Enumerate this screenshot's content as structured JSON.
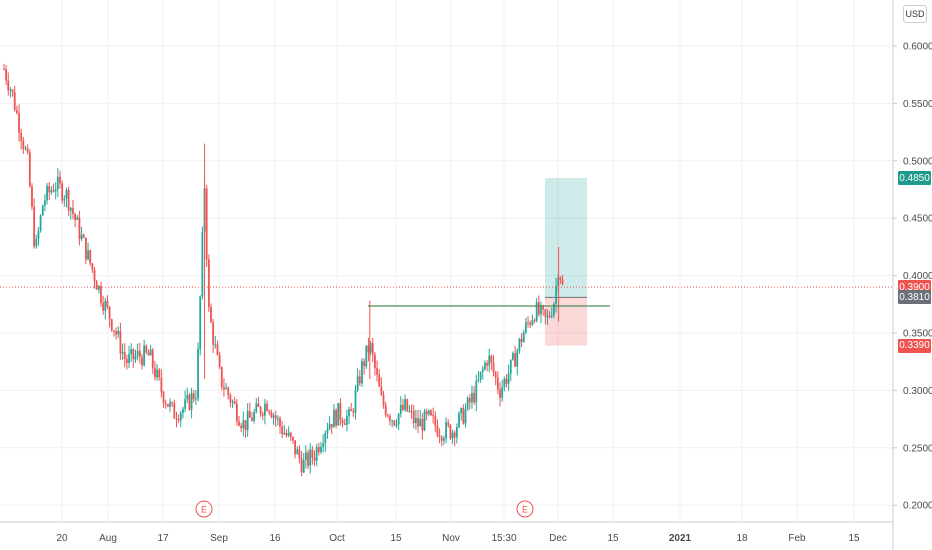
{
  "currency": "USD",
  "price_tags": [
    {
      "label": "0.4850",
      "value": 0.485,
      "color": "#1e9a8a"
    },
    {
      "label": "0.3900",
      "value": 0.39,
      "color": "#ef5350"
    },
    {
      "label": "0.3810",
      "value": 0.381,
      "color": "#6b6f78"
    },
    {
      "label": "0.3390",
      "value": 0.339,
      "color": "#ef5350"
    }
  ],
  "event_markers": [
    {
      "label": "E",
      "date": "2020-08-31"
    },
    {
      "label": "E",
      "date": "2020-11-26"
    }
  ],
  "colors": {
    "up": "#26a69a",
    "down": "#ef5350",
    "grid": "#eef0f3",
    "level_line": "#4f8a5b"
  },
  "chart_data": {
    "type": "candlestick",
    "x_ticks": [
      "20",
      "Aug",
      "17",
      "Sep",
      "16",
      "Oct",
      "15",
      "Nov",
      "15:30",
      "Dec",
      "15",
      "2021",
      "18",
      "Feb",
      "15"
    ],
    "y_ticks": [
      "0.6000",
      "0.5500",
      "0.5000",
      "0.4500",
      "0.4000",
      "0.3500",
      "0.3000",
      "0.2500",
      "0.2000"
    ],
    "ylim": [
      0.18,
      0.62
    ],
    "current_price": 0.39,
    "horizontal_level": 0.3735,
    "position": {
      "entry": 0.381,
      "target": 0.485,
      "stop": 0.339
    },
    "price_path": [
      [
        "2020-07-11",
        0.58
      ],
      [
        "2020-07-13",
        0.56
      ],
      [
        "2020-07-15",
        0.53
      ],
      [
        "2020-07-17",
        0.5
      ],
      [
        "2020-07-19",
        0.42
      ],
      [
        "2020-07-21",
        0.465
      ],
      [
        "2020-07-24",
        0.48
      ],
      [
        "2020-07-27",
        0.47
      ],
      [
        "2020-07-30",
        0.44
      ],
      [
        "2020-08-02",
        0.41
      ],
      [
        "2020-08-05",
        0.38
      ],
      [
        "2020-08-08",
        0.355
      ],
      [
        "2020-08-11",
        0.325
      ],
      [
        "2020-08-14",
        0.33
      ],
      [
        "2020-08-17",
        0.33
      ],
      [
        "2020-08-20",
        0.3
      ],
      [
        "2020-08-23",
        0.28
      ],
      [
        "2020-08-26",
        0.285
      ],
      [
        "2020-08-29",
        0.3
      ],
      [
        "2020-08-31",
        0.48
      ],
      [
        "2020-09-01",
        0.37
      ],
      [
        "2020-09-04",
        0.31
      ],
      [
        "2020-09-07",
        0.29
      ],
      [
        "2020-09-10",
        0.27
      ],
      [
        "2020-09-13",
        0.28
      ],
      [
        "2020-09-16",
        0.29
      ],
      [
        "2020-09-19",
        0.27
      ],
      [
        "2020-09-22",
        0.255
      ],
      [
        "2020-09-25",
        0.235
      ],
      [
        "2020-09-28",
        0.245
      ],
      [
        "2020-10-01",
        0.27
      ],
      [
        "2020-10-04",
        0.28
      ],
      [
        "2020-10-07",
        0.275
      ],
      [
        "2020-10-10",
        0.32
      ],
      [
        "2020-10-12",
        0.34
      ],
      [
        "2020-10-15",
        0.29
      ],
      [
        "2020-10-18",
        0.275
      ],
      [
        "2020-10-21",
        0.285
      ],
      [
        "2020-10-24",
        0.27
      ],
      [
        "2020-10-27",
        0.275
      ],
      [
        "2020-10-30",
        0.265
      ],
      [
        "2020-11-02",
        0.265
      ],
      [
        "2020-11-05",
        0.28
      ],
      [
        "2020-11-08",
        0.3
      ],
      [
        "2020-11-11",
        0.33
      ],
      [
        "2020-11-14",
        0.3
      ],
      [
        "2020-11-17",
        0.32
      ],
      [
        "2020-11-20",
        0.35
      ],
      [
        "2020-11-23",
        0.37
      ],
      [
        "2020-11-26",
        0.36
      ],
      [
        "2020-11-28",
        0.38
      ],
      [
        "2020-11-29",
        0.41
      ],
      [
        "2020-11-30",
        0.39
      ]
    ]
  }
}
